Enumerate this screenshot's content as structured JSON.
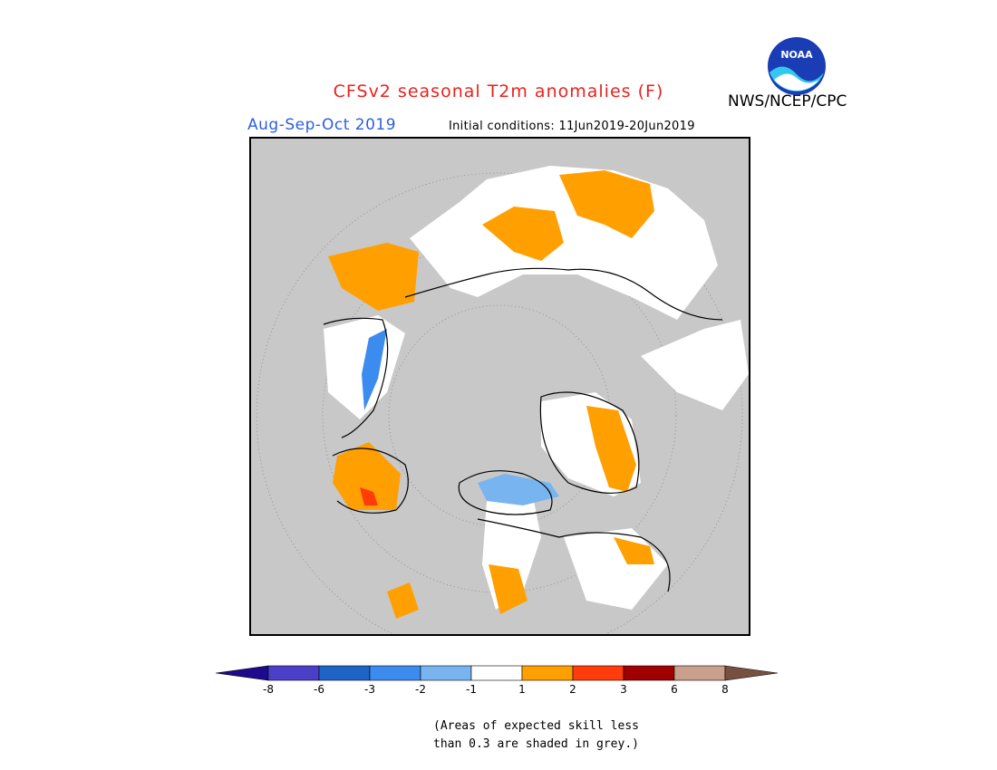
{
  "header": {
    "title": "CFSv2 seasonal T2m anomalies (F)",
    "season": "Aug-Sep-Oct 2019",
    "initial_conditions": "Initial conditions: 11Jun2019-20Jun2019",
    "agency": "NWS/NCEP/CPC",
    "logo_text": "NOAA"
  },
  "colors": {
    "title": "#e8221e",
    "season": "#2b5fe0",
    "no_skill_grey": "#c8c8c8",
    "near_normal": "#ffffff"
  },
  "legend": {
    "categories": [
      {
        "range": "< -8",
        "color": "#1e0a8c"
      },
      {
        "range": "-8 to -6",
        "color": "#4b3fc8"
      },
      {
        "range": "-6 to -3",
        "color": "#1e64c8"
      },
      {
        "range": "-3 to -2",
        "color": "#3c8cf0"
      },
      {
        "range": "-2 to -1",
        "color": "#78b4f0"
      },
      {
        "range": "-1 to 1",
        "color": "#ffffff"
      },
      {
        "range": "1 to 2",
        "color": "#ffa000"
      },
      {
        "range": "2 to 3",
        "color": "#ff3c0a"
      },
      {
        "range": "3 to 6",
        "color": "#a00000"
      },
      {
        "range": "6 to 8",
        "color": "#c8a08c"
      },
      {
        "range": "> 8",
        "color": "#785040"
      }
    ],
    "ticks": [
      "-8",
      "-6",
      "-3",
      "-2",
      "-1",
      "1",
      "2",
      "3",
      "6",
      "8"
    ]
  },
  "note": {
    "line1": "(Areas of expected skill less",
    "line2": "than 0.3 are shaded in grey.)"
  }
}
